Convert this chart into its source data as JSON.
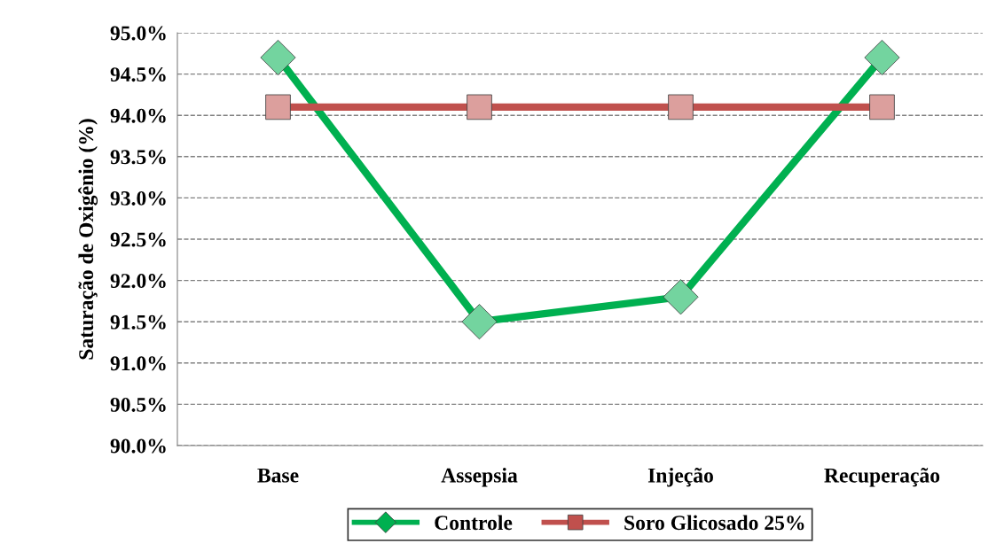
{
  "chart_data": {
    "type": "line",
    "ylabel": "Saturação de Oxigênio (%)",
    "categories": [
      "Base",
      "Assepsia",
      "Injeção",
      "Recuperação"
    ],
    "series": [
      {
        "name": "Controle",
        "color": "#00b050",
        "marker": "diamond",
        "values": [
          94.7,
          91.5,
          91.8,
          94.7
        ]
      },
      {
        "name": "Soro Glicosado 25%",
        "color": "#c0504d",
        "marker": "square",
        "values": [
          94.1,
          94.1,
          94.1,
          94.1
        ]
      }
    ],
    "ylim": [
      90.0,
      95.0
    ],
    "yticks": [
      {
        "value": 90.0,
        "label": "90.0%"
      },
      {
        "value": 90.5,
        "label": "90.5%"
      },
      {
        "value": 91.0,
        "label": "91.0%"
      },
      {
        "value": 91.5,
        "label": "91.5%"
      },
      {
        "value": 92.0,
        "label": "92.0%"
      },
      {
        "value": 92.5,
        "label": "92.5%"
      },
      {
        "value": 93.0,
        "label": "93.0%"
      },
      {
        "value": 93.5,
        "label": "93.5%"
      },
      {
        "value": 94.0,
        "label": "94.0%"
      },
      {
        "value": 94.5,
        "label": "94.5%"
      },
      {
        "value": 95.0,
        "label": "95.0%"
      }
    ],
    "grid": "y",
    "legend": "bottom",
    "line_style": "solid"
  }
}
